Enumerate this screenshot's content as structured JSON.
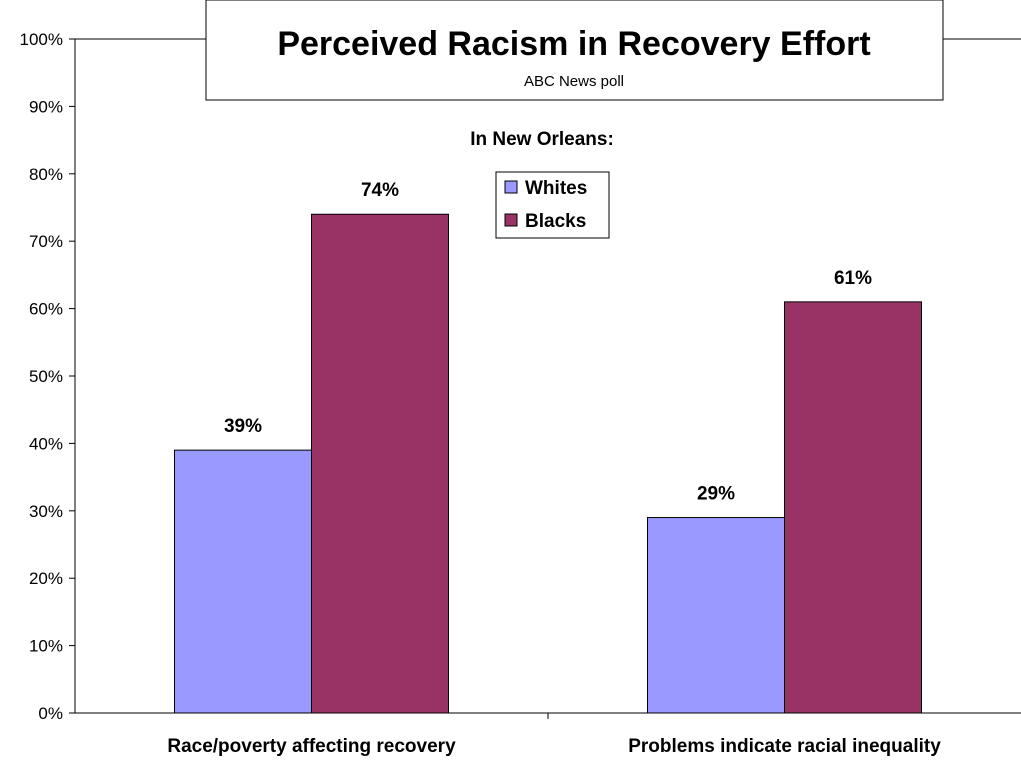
{
  "chart_data": {
    "type": "bar",
    "title": "Perceived Racism in Recovery Effort",
    "source": "ABC News poll",
    "subtitle": "In New Orleans:",
    "categories": [
      "Race/poverty affecting recovery",
      "Problems indicate racial inequality"
    ],
    "series": [
      {
        "name": "Whites",
        "values": [
          39,
          29
        ],
        "color": "#9999ff"
      },
      {
        "name": "Blacks",
        "values": [
          74,
          61
        ],
        "color": "#993366"
      }
    ],
    "data_labels": [
      [
        "39%",
        "29%"
      ],
      [
        "74%",
        "61%"
      ]
    ],
    "yticks": [
      "0%",
      "10%",
      "20%",
      "30%",
      "40%",
      "50%",
      "60%",
      "70%",
      "80%",
      "90%",
      "100%"
    ],
    "ylim": [
      0,
      100
    ],
    "grid": false,
    "legend_position": "top-center"
  }
}
